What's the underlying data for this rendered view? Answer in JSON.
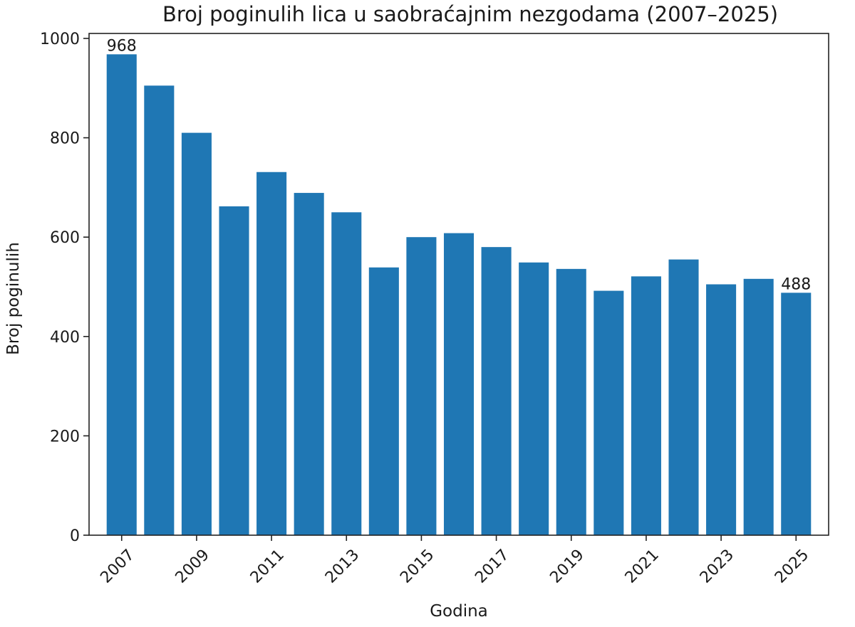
{
  "chart_data": {
    "type": "bar",
    "title": "Broj poginulih lica u saobraćajnim nezgodama (2007–2025)",
    "xlabel": "Godina",
    "ylabel": "Broj poginulih",
    "categories": [
      "2007",
      "2008",
      "2009",
      "2010",
      "2011",
      "2012",
      "2013",
      "2014",
      "2015",
      "2016",
      "2017",
      "2018",
      "2019",
      "2020",
      "2021",
      "2022",
      "2023",
      "2024",
      "2025"
    ],
    "values": [
      968,
      905,
      810,
      662,
      731,
      689,
      650,
      539,
      600,
      608,
      580,
      549,
      536,
      492,
      521,
      555,
      505,
      516,
      488
    ],
    "x_tick_labels": [
      "2007",
      "2009",
      "2011",
      "2013",
      "2015",
      "2017",
      "2019",
      "2021",
      "2023",
      "2025"
    ],
    "y_ticks": [
      0,
      200,
      400,
      600,
      800,
      1000
    ],
    "ylim": [
      0,
      1010
    ],
    "annotations": [
      {
        "category": "2007",
        "text": "968"
      },
      {
        "category": "2025",
        "text": "488"
      }
    ],
    "bar_color": "#1f77b4",
    "grid": false,
    "legend": "none"
  }
}
